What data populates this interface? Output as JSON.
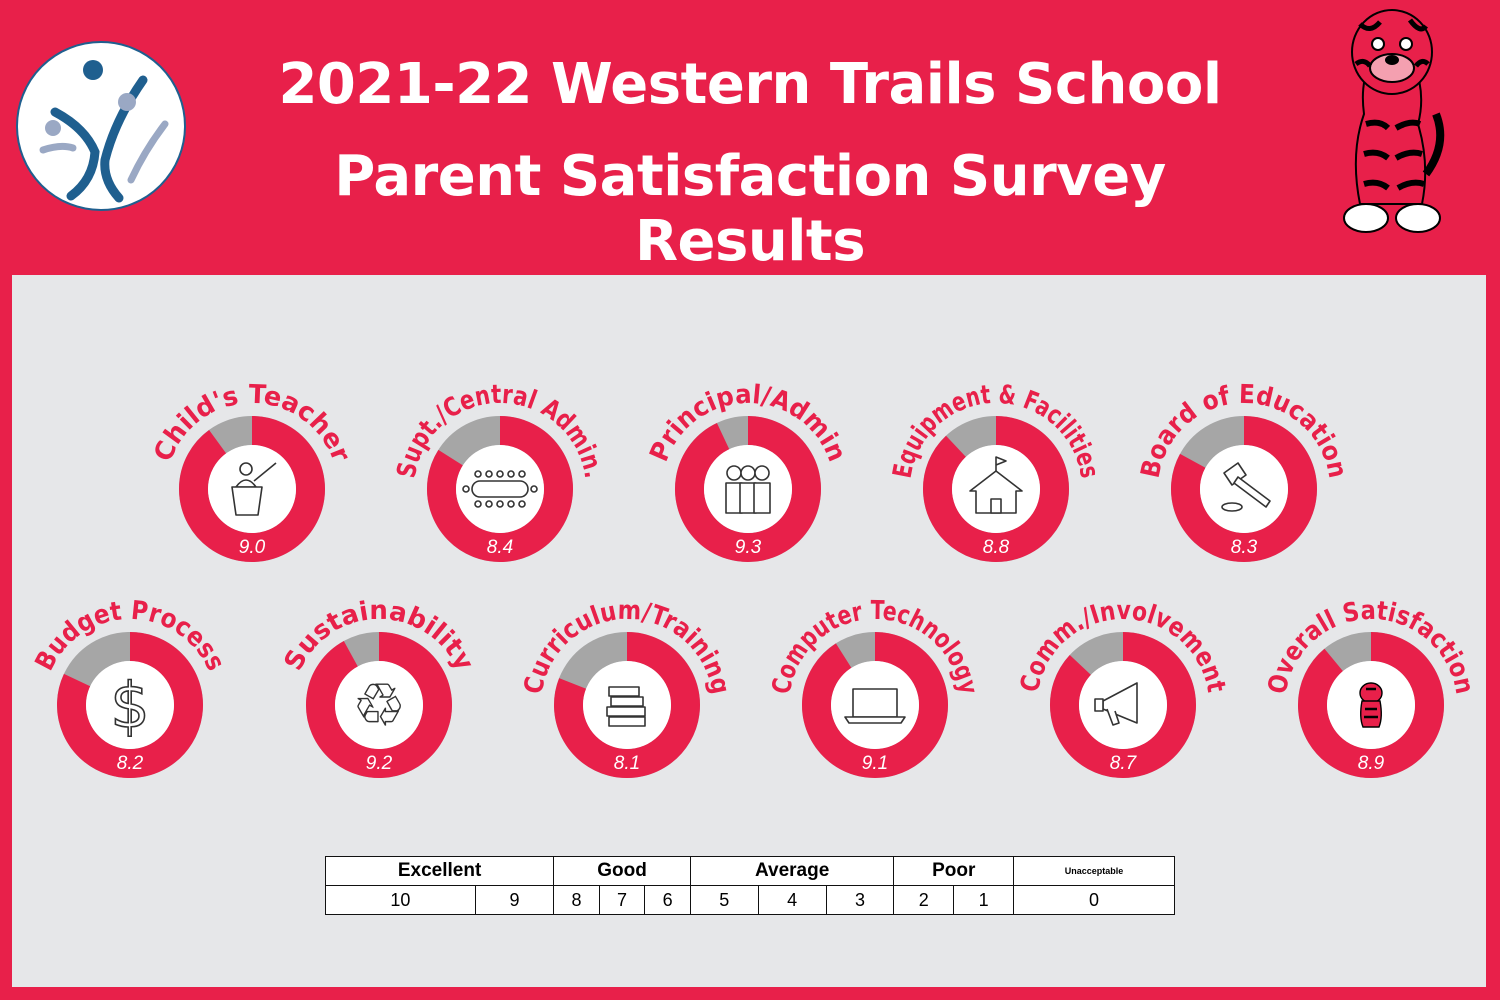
{
  "header": {
    "title_line1": "2021-22 Western Trails School",
    "title_line2": "Parent Satisfaction Survey Results"
  },
  "colors": {
    "accent": "#e8204a",
    "gray": "#a6a6a6",
    "panel": "#e6e7e9",
    "logo_blue": "#1f5f8f"
  },
  "chart_data": {
    "type": "donut",
    "scale_max": 10,
    "items": [
      {
        "label": "Child's Teacher",
        "value": 9.0,
        "value_label": "9.0",
        "icon": "teacher-at-podium-icon"
      },
      {
        "label": "Supt./Central Admin.",
        "value": 8.4,
        "value_label": "8.4",
        "icon": "conference-table-icon"
      },
      {
        "label": "Principal/Admin",
        "value": 9.3,
        "value_label": "9.3",
        "icon": "group-of-people-icon"
      },
      {
        "label": "Equipment & Facilities",
        "value": 8.8,
        "value_label": "8.8",
        "icon": "schoolhouse-icon"
      },
      {
        "label": "Board of Education",
        "value": 8.3,
        "value_label": "8.3",
        "icon": "gavel-icon"
      },
      {
        "label": "Budget Process",
        "value": 8.2,
        "value_label": "8.2",
        "icon": "dollar-sign-icon"
      },
      {
        "label": "Sustainability",
        "value": 9.2,
        "value_label": "9.2",
        "icon": "recycle-icon"
      },
      {
        "label": "Curriculum/Training",
        "value": 8.1,
        "value_label": "8.1",
        "icon": "stack-of-books-icon"
      },
      {
        "label": "Computer Technology",
        "value": 9.1,
        "value_label": "9.1",
        "icon": "laptop-icon"
      },
      {
        "label": "Comm./Involvement",
        "value": 8.7,
        "value_label": "8.7",
        "icon": "megaphone-icon"
      },
      {
        "label": "Overall Satisfaction",
        "value": 8.9,
        "value_label": "8.9",
        "icon": "tiger-mascot-icon"
      }
    ]
  },
  "scale": {
    "categories": [
      "Excellent",
      "Good",
      "Average",
      "Poor",
      "Unacceptable"
    ],
    "numbers": [
      "10",
      "9",
      "8",
      "7",
      "6",
      "5",
      "4",
      "3",
      "2",
      "1",
      "0"
    ]
  }
}
